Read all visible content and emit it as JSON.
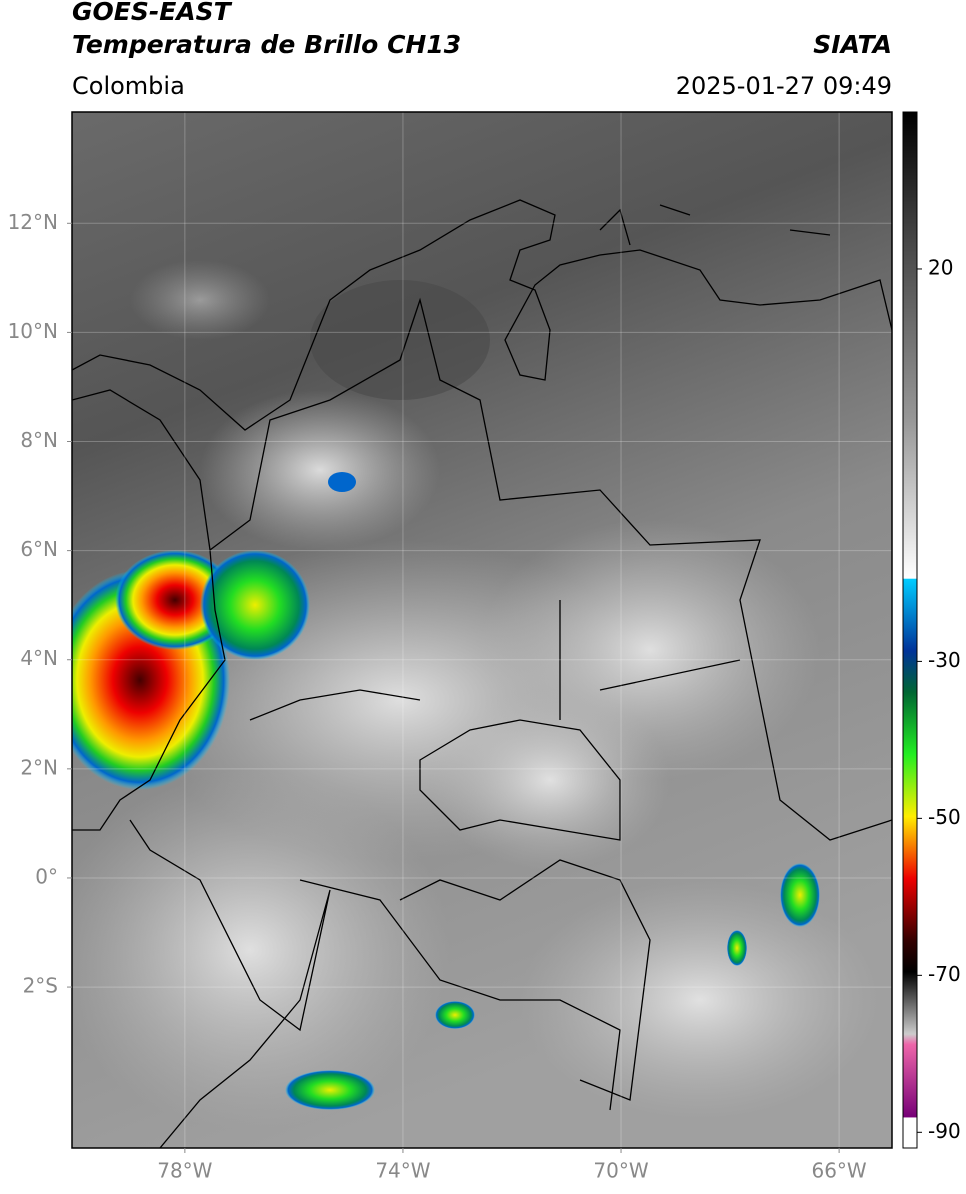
{
  "header": {
    "title": "GOES-EAST",
    "subtitle": "Temperatura de Brillo CH13",
    "source": "SIATA",
    "region": "Colombia",
    "timestamp": "2025-01-27 09:49"
  },
  "map": {
    "xlim": [
      -80.07,
      -65.03
    ],
    "ylim": [
      -4.95,
      14.04
    ],
    "xticks": [
      {
        "value": -78,
        "label": "78°W"
      },
      {
        "value": -74,
        "label": "74°W"
      },
      {
        "value": -70,
        "label": "70°W"
      },
      {
        "value": -66,
        "label": "66°W"
      }
    ],
    "yticks": [
      {
        "value": 12,
        "label": "12°N"
      },
      {
        "value": 10,
        "label": "10°N"
      },
      {
        "value": 8,
        "label": "8°N"
      },
      {
        "value": 6,
        "label": "6°N"
      },
      {
        "value": 4,
        "label": "4°N"
      },
      {
        "value": 2,
        "label": "2°N"
      },
      {
        "value": 0,
        "label": "0°"
      },
      {
        "value": -2,
        "label": "2°S"
      }
    ]
  },
  "colorbar": {
    "range": [
      -92,
      40
    ],
    "ticks": [
      20,
      -30,
      -50,
      -70,
      -90
    ]
  }
}
